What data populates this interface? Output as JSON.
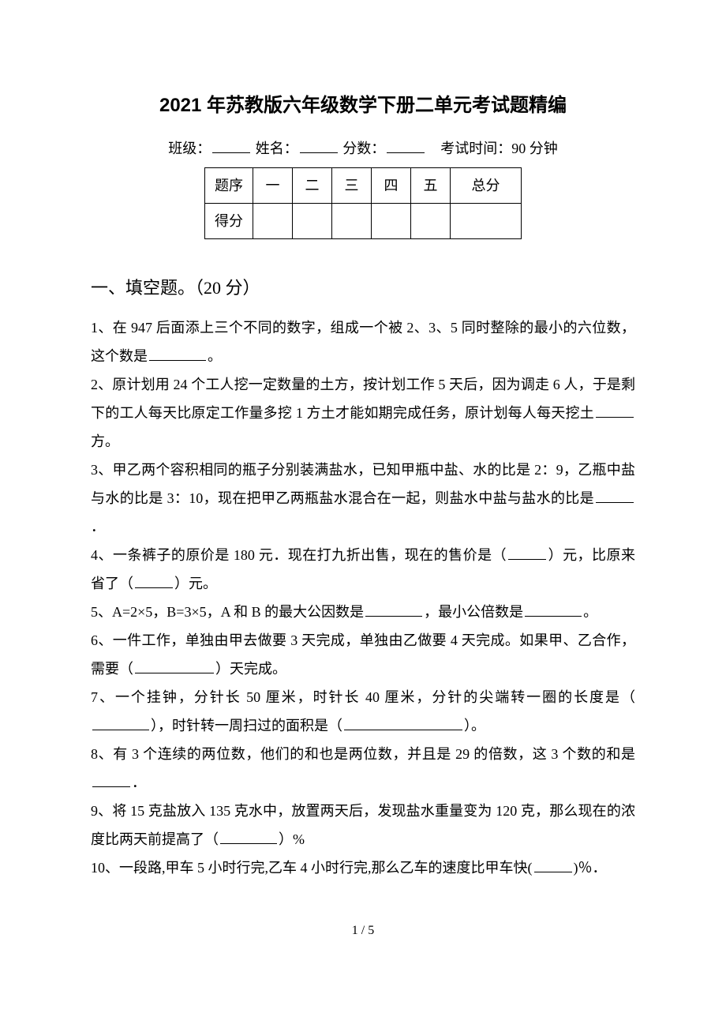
{
  "title": "2021 年苏教版六年级数学下册二单元考试题精编",
  "meta": {
    "class_label": "班级：",
    "name_label": "姓名：",
    "score_label": "分数：",
    "time_label": "考试时间：90 分钟"
  },
  "score_table": {
    "header": [
      "题序",
      "一",
      "二",
      "三",
      "四",
      "五",
      "总分"
    ],
    "row_label": "得分"
  },
  "section1": {
    "title": "一、填空题。（20 分）",
    "q1a": "1、在 947 后面添上三个不同的数字，组成一个被 2、3、5 同时整除的最小的六位数，这个数是",
    "q1b": "。",
    "q2a": "2、原计划用 24 个工人挖一定数量的土方，按计划工作 5 天后，因为调走 6 人，于是剩下的工人每天比原定工作量多挖 1 方土才能如期完成任务，原计划每人每天挖土",
    "q2b": "方。",
    "q3a": "3、甲乙两个容积相同的瓶子分别装满盐水，已知甲瓶中盐、水的比是 2：9，乙瓶中盐与水的比是 3：10，现在把甲乙两瓶盐水混合在一起，则盐水中盐与盐水的比是",
    "q3b": "．",
    "q4a": "4、一条裤子的原价是 180 元．现在打九折出售，现在的售价是（",
    "q4b": "）元，比原来省了（",
    "q4c": "）元。",
    "q5a": "5、A=2×5，B=3×5，A 和 B 的最大公因数是",
    "q5b": "，最小公倍数是",
    "q5c": "。",
    "q6a": "6、一件工作，单独由甲去做要 3 天完成，单独由乙做要 4 天完成。如果甲、乙合作，需要（",
    "q6b": "）天完成。",
    "q7a": "7、一个挂钟，分针长 50 厘米，时针长 40 厘米，分针的尖端转一圈的长度是（",
    "q7b": "），时针转一周扫过的面积是（",
    "q7c": "）。",
    "q8a": "8、有 3 个连续的两位数，他们的和也是两位数，并且是 29 的倍数，这 3 个数的和是",
    "q8b": "．",
    "q9a": "9、将 15 克盐放入 135 克水中，放置两天后，发现盐水重量变为 120 克，那么现在的浓度比两天前提高了（",
    "q9b": "）%",
    "q10a": "10、一段路,甲车 5 小时行完,乙车 4 小时行完,那么乙车的速度比甲车快(",
    "q10b": ")％．"
  },
  "page_num": "1 / 5"
}
